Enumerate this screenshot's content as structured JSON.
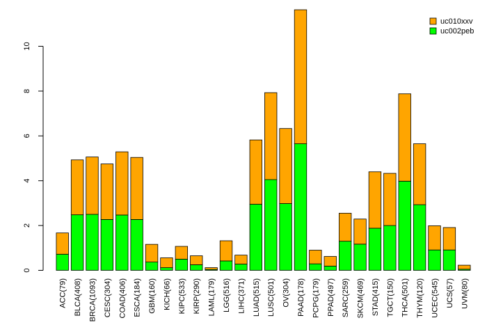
{
  "chart_data": {
    "type": "bar",
    "stacked": true,
    "title": "",
    "xlabel": "",
    "ylabel": "",
    "ylim": [
      0,
      11.6
    ],
    "y_ticks": [
      0,
      2,
      4,
      6,
      8,
      10
    ],
    "y_tick_labels": [
      "0",
      "2",
      "4",
      "6",
      "8",
      "10"
    ],
    "grid": false,
    "legend_position": "top-right",
    "categories": [
      "ACC(79)",
      "BLCA(408)",
      "BRCA(1093)",
      "CESC(304)",
      "COAD(406)",
      "ESCA(184)",
      "GBM(160)",
      "KICH(66)",
      "KIPC(533)",
      "KIRP(290)",
      "LAML(179)",
      "LGG(516)",
      "LIHC(371)",
      "LUAD(515)",
      "LUSC(501)",
      "OV(304)",
      "PAAD(178)",
      "PCPG(179)",
      "PPAD(497)",
      "SARC(259)",
      "SKCM(469)",
      "STAD(415)",
      "TGCT(150)",
      "THCA(501)",
      "THYM(120)",
      "UCEC(545)",
      "UCS(57)",
      "UVM(80)"
    ],
    "series": [
      {
        "name": "uc002peb",
        "color": "#00ff00",
        "values": [
          0.72,
          2.48,
          2.5,
          2.27,
          2.47,
          2.27,
          0.37,
          0.12,
          0.5,
          0.25,
          0.04,
          0.42,
          0.28,
          2.95,
          4.05,
          2.98,
          5.65,
          0.29,
          0.19,
          1.3,
          1.17,
          1.88,
          2.0,
          3.98,
          2.93,
          0.91,
          0.91,
          0.05
        ]
      },
      {
        "name": "uc010xxv",
        "color": "#ffa500",
        "values": [
          0.95,
          2.45,
          2.56,
          2.48,
          2.82,
          2.77,
          0.79,
          0.44,
          0.57,
          0.4,
          0.08,
          0.9,
          0.4,
          2.87,
          3.88,
          3.35,
          5.98,
          0.61,
          0.43,
          1.25,
          1.12,
          2.52,
          2.33,
          3.9,
          2.72,
          1.08,
          1.0,
          0.18
        ]
      }
    ],
    "legend": [
      {
        "name": "uc010xxv",
        "color": "#ffa500"
      },
      {
        "name": "uc002peb",
        "color": "#00ff00"
      }
    ]
  }
}
